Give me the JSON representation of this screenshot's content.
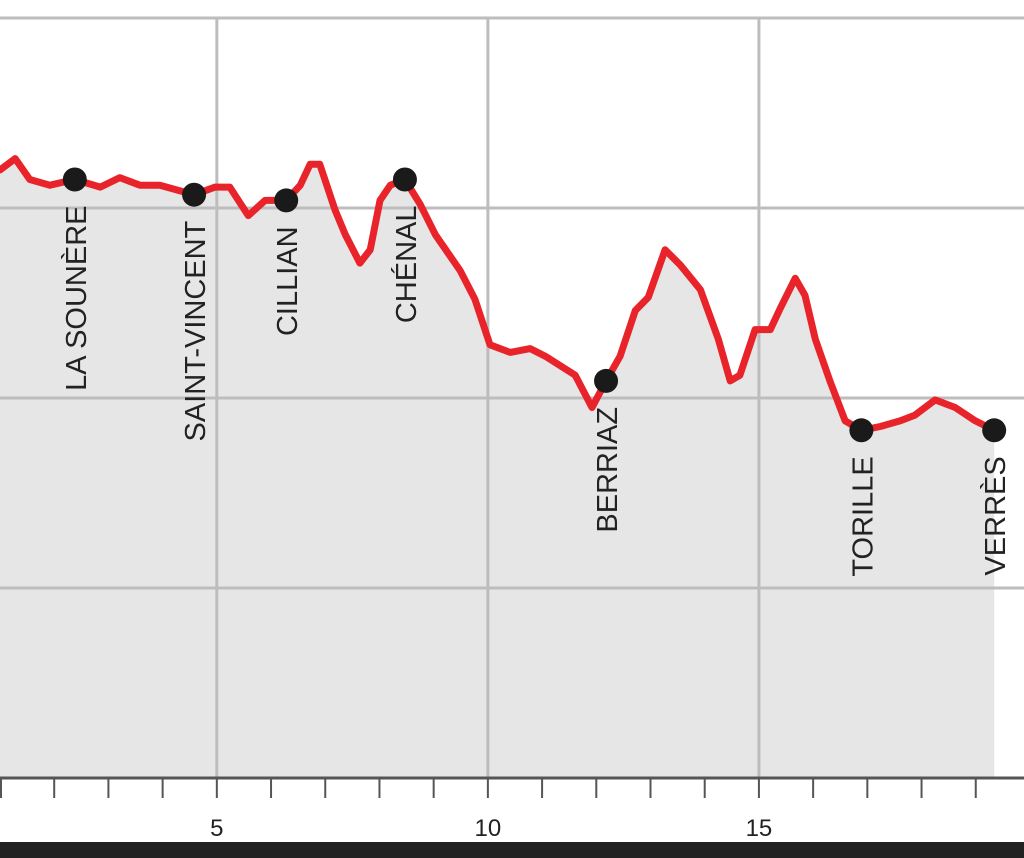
{
  "chart_data": {
    "type": "line",
    "x": [
      1.0,
      1.28,
      1.55,
      1.92,
      2.38,
      2.85,
      3.21,
      3.58,
      3.95,
      4.58,
      4.97,
      5.24,
      5.58,
      5.89,
      6.28,
      6.54,
      6.72,
      6.9,
      7.18,
      7.37,
      7.64,
      7.83,
      8.01,
      8.2,
      8.47,
      8.75,
      9.03,
      9.49,
      9.76,
      10.04,
      10.41,
      10.78,
      11.06,
      11.61,
      11.92,
      12.18,
      12.44,
      12.72,
      12.96,
      13.27,
      13.55,
      13.92,
      14.25,
      14.47,
      14.65,
      14.93,
      15.21,
      15.39,
      15.67,
      15.85,
      16.04,
      16.31,
      16.59,
      16.89,
      17.24,
      17.61,
      17.88,
      18.25,
      18.62,
      18.99,
      19.34
    ],
    "values": [
      3.2,
      3.26,
      3.15,
      3.12,
      3.15,
      3.11,
      3.16,
      3.12,
      3.12,
      3.07,
      3.11,
      3.11,
      2.96,
      3.04,
      3.04,
      3.12,
      3.23,
      3.23,
      2.99,
      2.86,
      2.71,
      2.78,
      3.04,
      3.12,
      3.15,
      3.02,
      2.86,
      2.67,
      2.52,
      2.28,
      2.24,
      2.26,
      2.22,
      2.12,
      1.95,
      2.09,
      2.22,
      2.46,
      2.53,
      2.78,
      2.7,
      2.57,
      2.31,
      2.09,
      2.12,
      2.36,
      2.36,
      2.47,
      2.63,
      2.54,
      2.31,
      2.09,
      1.88,
      1.83,
      1.85,
      1.88,
      1.91,
      1.99,
      1.95,
      1.88,
      1.83
    ],
    "color": "#e8232a",
    "fill_color": "#e6e6e6",
    "stops": [
      {
        "label": "LA SOUNÈRE",
        "x": 2.38,
        "value": 3.15
      },
      {
        "label": "SAINT-VINCENT",
        "x": 4.58,
        "value": 3.07
      },
      {
        "label": "CILLIAN",
        "x": 6.28,
        "value": 3.04
      },
      {
        "label": "CHÉNAL",
        "x": 8.47,
        "value": 3.15
      },
      {
        "label": "BERRIAZ",
        "x": 12.18,
        "value": 2.09
      },
      {
        "label": "TORILLE",
        "x": 16.89,
        "value": 1.83
      },
      {
        "label": "VERRÈS",
        "x": 19.34,
        "value": 1.83
      }
    ],
    "xlim": [
      1,
      19.89
    ],
    "xticks": [
      5,
      10,
      15
    ],
    "xminorticks": [
      2,
      3,
      4,
      6,
      7,
      8,
      9,
      11,
      12,
      13,
      14,
      16,
      17,
      18,
      19
    ],
    "ylim": [
      0,
      4
    ],
    "ygrid": [
      1,
      2,
      3,
      4
    ],
    "grid": true
  }
}
